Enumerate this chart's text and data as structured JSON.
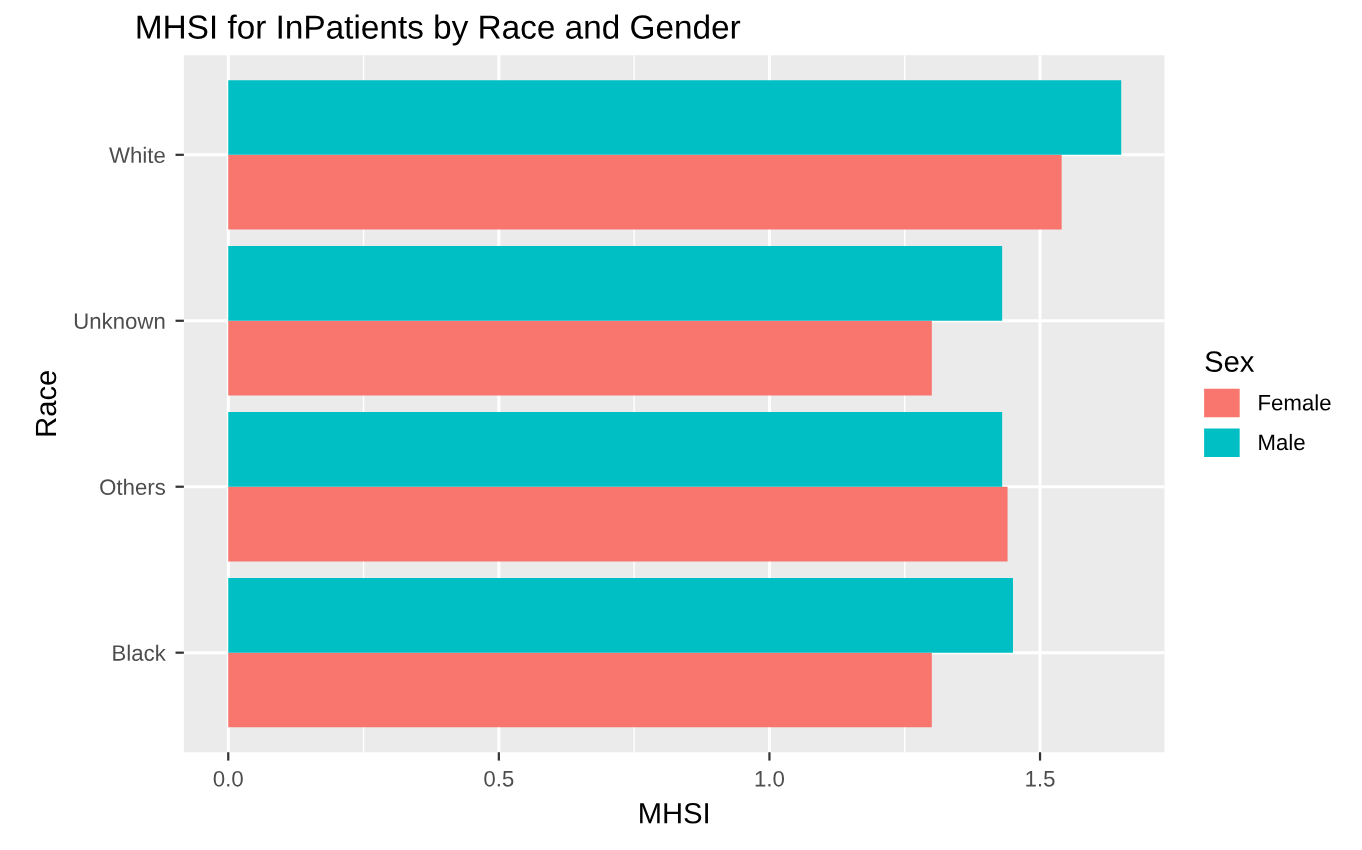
{
  "chart_data": {
    "type": "bar",
    "orientation": "horizontal",
    "title": "MHSI for InPatients by Race and Gender",
    "xlabel": "MHSI",
    "ylabel": "Race",
    "legend_title": "Sex",
    "categories": [
      "White",
      "Unknown",
      "Others",
      "Black"
    ],
    "series": [
      {
        "name": "Female",
        "color": "#f8766d",
        "values": [
          1.54,
          1.3,
          1.44,
          1.3
        ]
      },
      {
        "name": "Male",
        "color": "#00bfc4",
        "values": [
          1.65,
          1.43,
          1.43,
          1.45
        ]
      }
    ],
    "xlim": [
      -0.082,
      1.73
    ],
    "xticks": [
      {
        "value": 0,
        "label": "0.0"
      },
      0.5,
      {
        "value": 1,
        "label": "1.0"
      },
      1.5
    ],
    "grid": true,
    "legend": "right"
  }
}
